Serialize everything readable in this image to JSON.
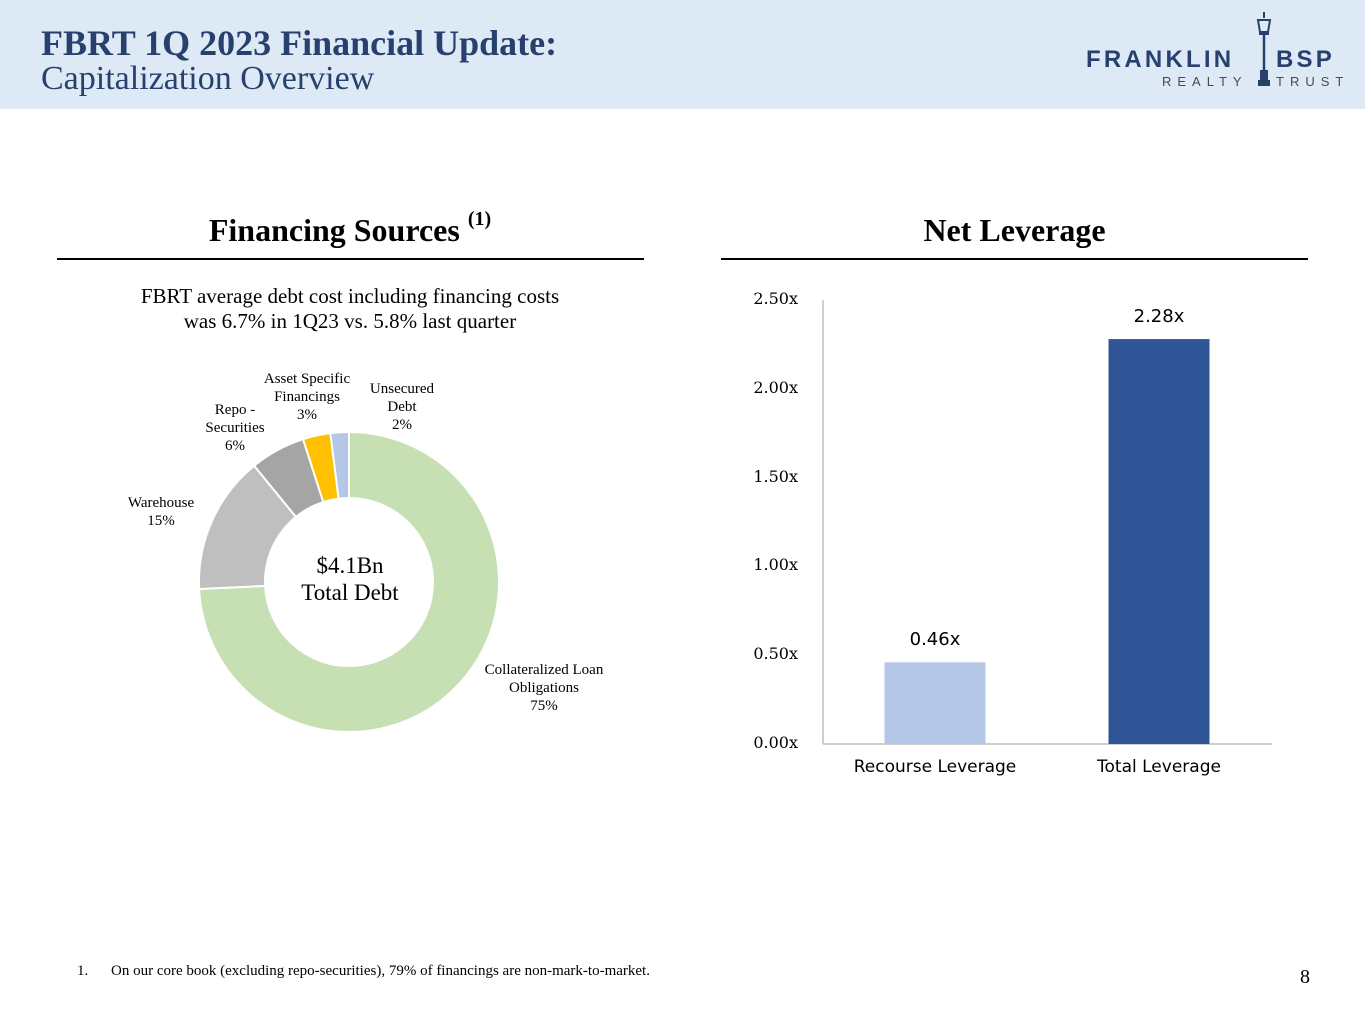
{
  "header": {
    "title_line1": "FBRT 1Q 2023 Financial Update:",
    "title_line2": "Capitalization Overview",
    "logo": {
      "name_left": "FRANKLIN",
      "name_right": "BSP",
      "sub_left": "REALTY",
      "sub_right": "TRUST"
    }
  },
  "financing": {
    "heading": "Financing Sources",
    "heading_sup": "(1)",
    "subtitle_line1": "FBRT average debt cost including financing costs",
    "subtitle_line2": "was 6.7% in 1Q23 vs. 5.8% last quarter",
    "center_line1": "$4.1Bn",
    "center_line2": "Total Debt"
  },
  "leverage": {
    "heading": "Net Leverage"
  },
  "chart_data": [
    {
      "type": "pie",
      "donut": true,
      "title": "Financing Sources",
      "center_label": "$4.1Bn Total Debt",
      "slices": [
        {
          "label": "Collateralized Loan Obligations",
          "display": "Collateralized Loan\nObligations\n75%",
          "value": 75,
          "color": "#c6e0b4"
        },
        {
          "label": "Warehouse",
          "display": "Warehouse\n15%",
          "value": 15,
          "color": "#bfbfbf"
        },
        {
          "label": "Repo - Securities",
          "display": "Repo -\nSecurities\n6%",
          "value": 6,
          "color": "#a5a5a5"
        },
        {
          "label": "Asset Specific Financings",
          "display": "Asset Specific\nFinancings\n3%",
          "value": 3,
          "color": "#ffc000"
        },
        {
          "label": "Unsecured Debt",
          "display": "Unsecured\nDebt\n2%",
          "value": 2,
          "color": "#b4c7e7"
        }
      ]
    },
    {
      "type": "bar",
      "title": "Net Leverage",
      "categories": [
        "Recourse Leverage",
        "Total Leverage"
      ],
      "values": [
        0.46,
        2.28
      ],
      "value_labels": [
        "0.46x",
        "2.28x"
      ],
      "colors": [
        "#b4c7e7",
        "#2f5597"
      ],
      "ylim": [
        0,
        2.5
      ],
      "yticks": [
        "0.00x",
        "0.50x",
        "1.00x",
        "1.50x",
        "2.00x",
        "2.50x"
      ],
      "grid": false
    }
  ],
  "footnote": {
    "number": "1.",
    "text": "On our core book (excluding repo-securities), 79% of financings are non-mark-to-market."
  },
  "page_number": "8"
}
